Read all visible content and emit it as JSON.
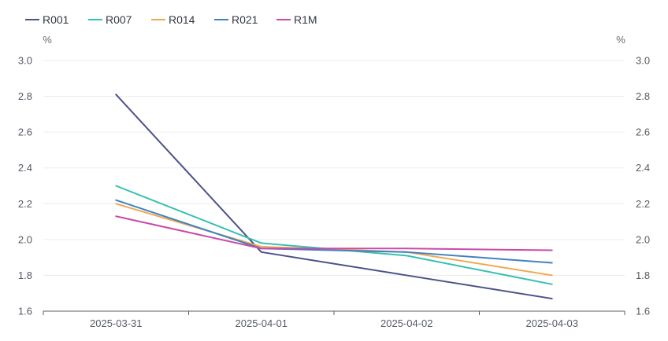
{
  "chart_data": {
    "type": "line",
    "x": [
      "2025-03-31",
      "2025-04-01",
      "2025-04-02",
      "2025-04-03"
    ],
    "series": [
      {
        "name": "R001",
        "color": "#4c5189",
        "values": [
          2.81,
          1.93,
          1.8,
          1.67
        ]
      },
      {
        "name": "R007",
        "color": "#36c0b0",
        "values": [
          2.3,
          1.98,
          1.91,
          1.75
        ]
      },
      {
        "name": "R014",
        "color": "#f0a850",
        "values": [
          2.2,
          1.96,
          1.93,
          1.8
        ]
      },
      {
        "name": "R021",
        "color": "#3f82c0",
        "values": [
          2.22,
          1.95,
          1.93,
          1.87
        ]
      },
      {
        "name": "R1M",
        "color": "#c94aa8",
        "values": [
          2.13,
          1.95,
          1.95,
          1.94
        ]
      }
    ],
    "ylim": [
      1.6,
      3.0
    ],
    "y_ticks": [
      "1.6",
      "1.8",
      "2.0",
      "2.2",
      "2.4",
      "2.6",
      "2.8",
      "3.0"
    ],
    "y_unit_left": "%",
    "y_unit_right": "%",
    "grid": true,
    "legend_position": "top-left",
    "title": "",
    "xlabel": "",
    "ylabel": ""
  }
}
